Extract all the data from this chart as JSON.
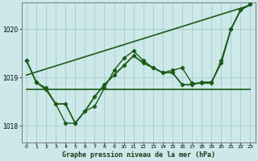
{
  "background_color": "#cce8e8",
  "plot_bg_color": "#cce8e8",
  "grid_color": "#aacccc",
  "line_color": "#1a5c1a",
  "xlabel": "Graphe pression niveau de la mer (hPa)",
  "xlim": [
    -0.5,
    23.5
  ],
  "ylim": [
    1017.65,
    1020.55
  ],
  "yticks": [
    1018,
    1019,
    1020
  ],
  "xticks": [
    0,
    1,
    2,
    3,
    4,
    5,
    6,
    7,
    8,
    9,
    10,
    11,
    12,
    13,
    14,
    15,
    16,
    17,
    18,
    19,
    20,
    21,
    22,
    23
  ],
  "series": [
    {
      "x": [
        0,
        1,
        2,
        3,
        4,
        5,
        6,
        7,
        8,
        9,
        10,
        11,
        12,
        13,
        14,
        15,
        16,
        17,
        18,
        19,
        20,
        21,
        22,
        23
      ],
      "y": [
        1018.75,
        1018.75,
        1018.75,
        1018.75,
        1018.75,
        1018.75,
        1018.75,
        1018.75,
        1018.75,
        1018.75,
        1018.75,
        1018.75,
        1018.75,
        1018.75,
        1018.75,
        1018.75,
        1018.75,
        1018.75,
        1018.75,
        1018.75,
        1018.75,
        1018.75,
        1018.75,
        1018.75
      ],
      "has_markers": false,
      "linewidth": 1.2
    },
    {
      "x": [
        0,
        23
      ],
      "y": [
        1019.05,
        1020.5
      ],
      "has_markers": false,
      "linewidth": 1.2
    },
    {
      "x": [
        0,
        1,
        2,
        3,
        4,
        5,
        6,
        7,
        8,
        9,
        10,
        11,
        12,
        13,
        14,
        15,
        16,
        17,
        18,
        19,
        20,
        21,
        22,
        23
      ],
      "y": [
        1019.35,
        1018.9,
        1018.75,
        1018.45,
        1018.45,
        1018.05,
        1018.3,
        1018.6,
        1018.85,
        1019.05,
        1019.25,
        1019.45,
        1019.3,
        1019.2,
        1019.1,
        1019.1,
        1018.85,
        1018.85,
        1018.9,
        1018.9,
        1019.3,
        1020.0,
        1020.4,
        1020.52
      ],
      "has_markers": true,
      "linewidth": 1.3
    },
    {
      "x": [
        0,
        1,
        2,
        3,
        4,
        5,
        6,
        7,
        8,
        9,
        10,
        11,
        12,
        13,
        14,
        15,
        16,
        17,
        18,
        19,
        20,
        21,
        22,
        23
      ],
      "y": [
        1019.35,
        1018.9,
        1018.78,
        1018.45,
        1018.05,
        1018.05,
        1018.3,
        1018.4,
        1018.78,
        1019.15,
        1019.4,
        1019.55,
        1019.35,
        1019.2,
        1019.1,
        1019.15,
        1019.2,
        1018.88,
        1018.88,
        1018.88,
        1019.35,
        1020.0,
        1020.4,
        1020.52
      ],
      "has_markers": true,
      "linewidth": 1.0
    }
  ]
}
